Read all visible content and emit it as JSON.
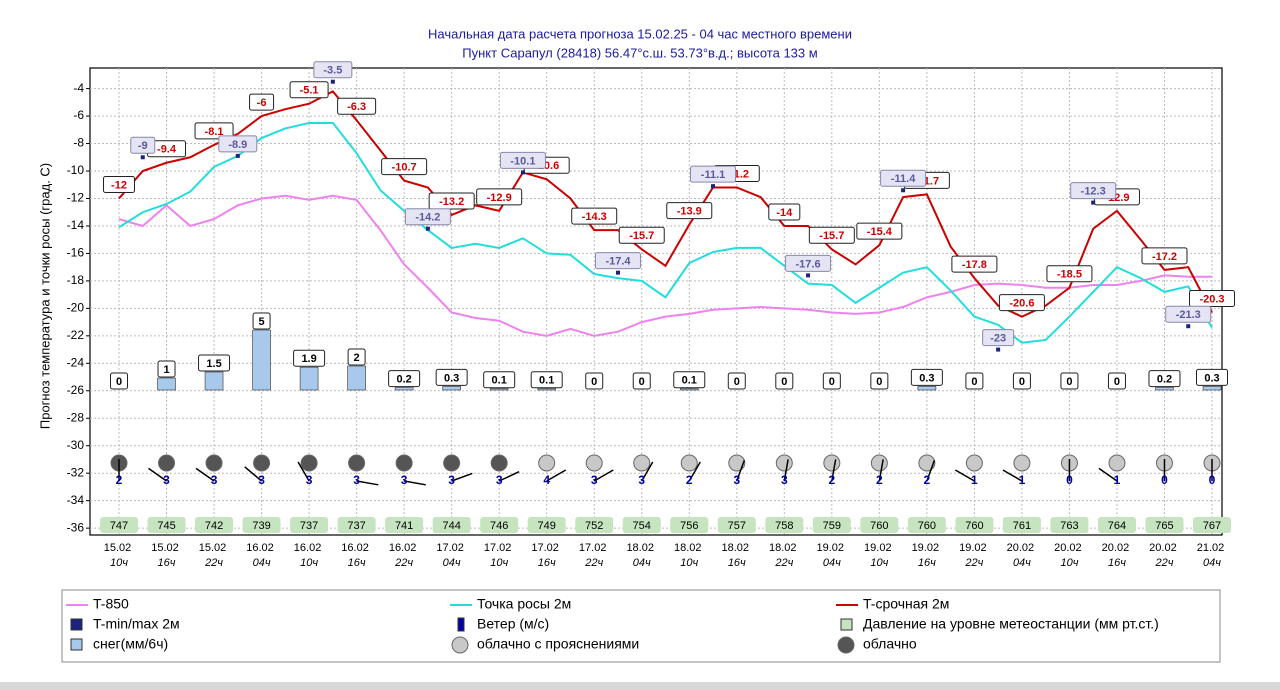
{
  "chart_data": {
    "type": "line",
    "title": "Начальная дата расчета прогноза 15.02.25 - 04 час местного времени",
    "subtitle": "Пункт  Сарапул (28418)   56.47°с.ш.   53.73°в.д.; высота 133 м",
    "y_label": "Прогноз температура и точки росы (град. С)",
    "categories": [
      "15.02 10ч",
      null,
      "15.02 16ч",
      null,
      "15.02 22ч",
      null,
      "16.02 04ч",
      null,
      "16.02 10ч",
      null,
      "16.02 16ч",
      null,
      "16.02 22ч",
      null,
      "17.02 04ч",
      null,
      "17.02 10ч",
      null,
      "17.02 16ч",
      null,
      "17.02 22ч",
      null,
      "18.02 04ч",
      null,
      "18.02 10ч",
      null,
      "18.02 16ч",
      null,
      "18.02 22ч",
      null,
      "19.02 04ч",
      null,
      "19.02 10ч",
      null,
      "19.02 16ч",
      null,
      "19.02 22ч",
      null,
      "20.02 04ч",
      null,
      "20.02 10ч",
      null,
      "20.02 16ч",
      null,
      "20.02 22ч",
      null,
      "21.02 04ч"
    ],
    "ylim": [
      -36.5,
      -2.5
    ],
    "yticks": [
      -4,
      -6,
      -8,
      -10,
      -12,
      -14,
      -16,
      -18,
      -20,
      -22,
      -24,
      -26,
      -28,
      -30,
      -32,
      -34,
      -36
    ],
    "grid": true,
    "series": [
      {
        "name": "T-850",
        "color": "#ee82ee",
        "kind": "line",
        "values": [
          -13.5,
          -14,
          -12.5,
          -14,
          -13.5,
          -12.5,
          -12,
          -11.8,
          -12.1,
          -11.8,
          -12.1,
          -14.3,
          -16.8,
          -18.5,
          -20.3,
          -20.7,
          -20.9,
          -21.7,
          -22,
          -21.5,
          -22,
          -21.7,
          -21,
          -20.6,
          -20.4,
          -20.1,
          -20,
          -19.9,
          -20,
          -20.1,
          -20.3,
          -20.4,
          -20.3,
          -19.9,
          -19.2,
          -18.8,
          -18.3,
          -18.2,
          -18.3,
          -18.5,
          -18.5,
          -18.3,
          -18.3,
          -18,
          -17.6,
          -17.7,
          -17.7
        ]
      },
      {
        "name": "Точка росы 2м",
        "color": "#22dddd",
        "kind": "line",
        "values": [
          -14.1,
          -13,
          -12.4,
          -11.5,
          -9.7,
          -8.9,
          -7.6,
          -6.9,
          -6.5,
          -6.5,
          -8.7,
          -11.4,
          -12.9,
          -14.3,
          -15.6,
          -15.3,
          -15.6,
          -14.9,
          -16,
          -16.1,
          -17.5,
          -17.8,
          -18,
          -19.2,
          -16.7,
          -15.9,
          -15.6,
          -15.6,
          -16.9,
          -18.2,
          -18.3,
          -19.6,
          -18.5,
          -17.4,
          -17,
          -18.7,
          -20.6,
          -21.2,
          -22.5,
          -22.3,
          -20.6,
          -18.8,
          -17,
          -17.8,
          -18.8,
          -18.4,
          -21.4
        ]
      },
      {
        "name": "T-срочная 2м",
        "color": "#cc0000",
        "kind": "line-labeled",
        "values": [
          -12,
          -10,
          -9.4,
          -9,
          -8.1,
          -7.3,
          -6,
          -5.5,
          -5.1,
          -4.2,
          -6.3,
          -8.5,
          -10.7,
          -11.2,
          -13.2,
          -12.5,
          -12.9,
          -10.1,
          -10.6,
          -12,
          -14.3,
          -14.3,
          -15.7,
          -16.9,
          -13.9,
          -11.2,
          -11.2,
          -11.9,
          -14,
          -14,
          -15.7,
          -16.8,
          -15.4,
          -11.9,
          -11.7,
          -15.5,
          -17.8,
          -19.8,
          -20.6,
          -19.8,
          -18.5,
          -14.2,
          -12.9,
          -15,
          -17.2,
          -17,
          -20.3
        ]
      },
      {
        "name": "T-min/max 2м",
        "color": "#1a237e",
        "kind": "marker",
        "values": [
          null,
          -9,
          null,
          null,
          null,
          -8.9,
          null,
          null,
          null,
          -3.5,
          null,
          null,
          null,
          -14.2,
          null,
          null,
          null,
          -10.1,
          null,
          null,
          null,
          -17.4,
          null,
          null,
          null,
          -11.1,
          null,
          null,
          null,
          -17.6,
          null,
          null,
          null,
          -11.4,
          null,
          null,
          null,
          -23,
          null,
          null,
          null,
          -12.3,
          null,
          null,
          null,
          -21.3,
          null
        ]
      }
    ],
    "snow": {
      "name": "снег(мм/6ч)",
      "color": "#a8c8ec",
      "values": [
        0,
        1,
        1.5,
        5,
        1.9,
        2,
        0.2,
        0.3,
        0.1,
        0.1,
        0,
        0,
        0.1,
        0,
        0,
        0,
        0,
        0.3,
        0,
        0,
        0,
        0,
        0.2,
        0.3
      ]
    },
    "wind": {
      "name": "Ветер (м/с)",
      "color": "#0000aa",
      "values": [
        2,
        3,
        3,
        3,
        3,
        3,
        3,
        3,
        3,
        4,
        3,
        3,
        2,
        3,
        3,
        2,
        2,
        2,
        1,
        1,
        0,
        1,
        0,
        0
      ],
      "directions": [
        90,
        145,
        145,
        140,
        120,
        -10,
        -10,
        20,
        25,
        30,
        30,
        60,
        60,
        70,
        80,
        80,
        80,
        70,
        150,
        150,
        90,
        145,
        90,
        90
      ]
    },
    "pressure": {
      "name": "Давление на уровне метеостанции (мм рт.ст.)",
      "color": "#c6e4c0",
      "values": [
        747,
        745,
        742,
        739,
        737,
        737,
        741,
        744,
        746,
        749,
        752,
        754,
        756,
        757,
        758,
        759,
        760,
        760,
        760,
        761,
        763,
        764,
        765,
        767
      ]
    },
    "clouds": {
      "types": [
        {
          "name": "облачно с прояснениями",
          "color": "#c8c8c8"
        },
        {
          "name": "облачно",
          "color": "#555555"
        }
      ],
      "values": [
        "#555555",
        "#555555",
        "#555555",
        "#555555",
        "#555555",
        "#555555",
        "#555555",
        "#555555",
        "#555555",
        "#c8c8c8",
        "#c8c8c8",
        "#c8c8c8",
        "#c8c8c8",
        "#c8c8c8",
        "#c8c8c8",
        "#c8c8c8",
        "#c8c8c8",
        "#c8c8c8",
        "#c8c8c8",
        "#c8c8c8",
        "#c8c8c8",
        "#c8c8c8",
        "#c8c8c8",
        "#c8c8c8"
      ]
    }
  }
}
